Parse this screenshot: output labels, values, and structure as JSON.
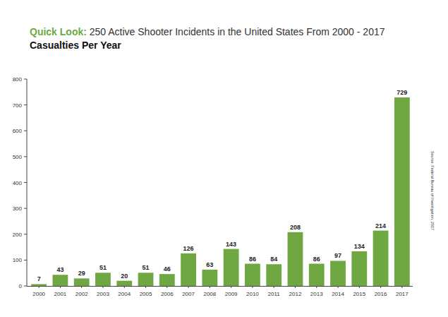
{
  "chart_data": {
    "type": "bar",
    "title": "Quick Look: 250 Active Shooter Incidents in the United States From 2000 - 2017",
    "subtitle": "Casualties Per Year",
    "annotations": [
      "Source: Federal Bureau of Investigation, 2017"
    ],
    "categories": [
      "2000",
      "2001",
      "2002",
      "2003",
      "2004",
      "2005",
      "2006",
      "2007",
      "2008",
      "2009",
      "2010",
      "2011",
      "2012",
      "2013",
      "2014",
      "2015",
      "2016",
      "2017"
    ],
    "values": [
      7,
      43,
      29,
      51,
      20,
      51,
      46,
      126,
      63,
      143,
      86,
      84,
      208,
      86,
      97,
      134,
      214,
      729
    ],
    "color": "#6fa843",
    "ylim": [
      0,
      800
    ],
    "yticks": [
      0,
      100,
      200,
      300,
      400,
      500,
      600,
      700,
      800
    ],
    "grid": false,
    "data_labels": true
  }
}
